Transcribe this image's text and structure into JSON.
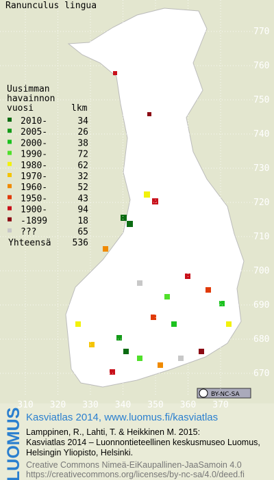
{
  "title": "Ranunculus lingua",
  "legend": {
    "heading": [
      "Uusimman",
      "havainnon",
      "vuosi"
    ],
    "count_heading": "lkm",
    "rows": [
      {
        "label": "2010-",
        "count": 34,
        "color": "#0b6b12"
      },
      {
        "label": "2005-",
        "count": 26,
        "color": "#139a18"
      },
      {
        "label": "2000-",
        "count": 38,
        "color": "#1bc21f"
      },
      {
        "label": "1990-",
        "count": 72,
        "color": "#50e02a"
      },
      {
        "label": "1980-",
        "count": 62,
        "color": "#f2f20a"
      },
      {
        "label": "1970-",
        "count": 32,
        "color": "#f5c400"
      },
      {
        "label": "1960-",
        "count": 52,
        "color": "#f08a00"
      },
      {
        "label": "1950-",
        "count": 43,
        "color": "#e03a08"
      },
      {
        "label": "1900-",
        "count": 94,
        "color": "#c8101a"
      },
      {
        "label": "-1899",
        "count": 18,
        "color": "#8b0a14"
      },
      {
        "label": "???",
        "count": 65,
        "color": "#c8c8c8"
      }
    ],
    "total_label": "Yhteensä",
    "total": 536
  },
  "grid": {
    "north": [
      770,
      760,
      750,
      740,
      730,
      720,
      710,
      700,
      690,
      680,
      670
    ],
    "east": [
      310,
      320,
      330,
      340,
      350,
      360,
      370
    ]
  },
  "badge": "BY-NC-SA",
  "footer": {
    "logo": "LUOMUS",
    "heading": "Kasviatlas 2014, www.luomus.fi/kasviatlas",
    "citation": [
      "Lamppinen, R., Lahti, T. & Heikkinen M. 2015:",
      "Kasviatlas 2014 – Luonnontieteellinen keskusmuseo Luomus,",
      "Helsingin Yliopisto, Helsinki."
    ],
    "license": [
      "Creative Commons Nimeä-EiKaupallinen-JaaSamoin 4.0",
      "https://creativecommons.org/licenses/by-nc-sa/4.0/deed.fi"
    ]
  }
}
